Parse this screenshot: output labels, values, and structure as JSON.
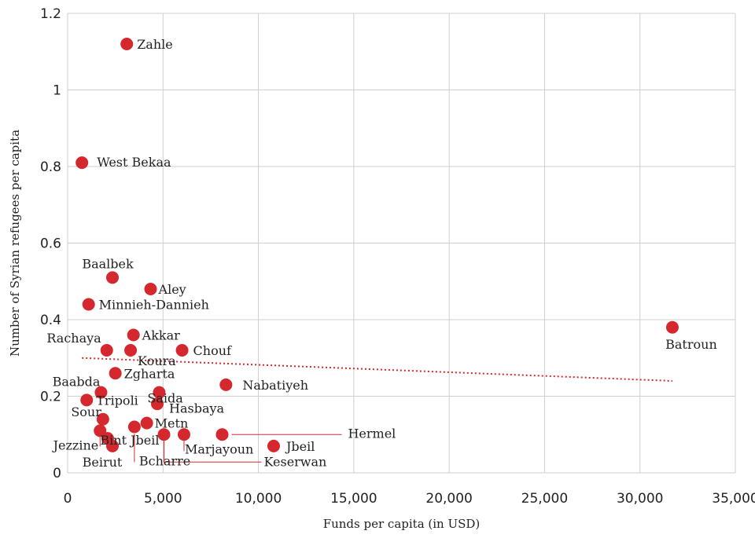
{
  "chart_data": {
    "type": "scatter",
    "xlabel": "Funds per capita (in USD)",
    "ylabel": "Number of Syrian refugees per capita",
    "xlim": [
      0,
      35000
    ],
    "ylim": [
      0,
      1.2
    ],
    "x_ticks": [
      0,
      5000,
      10000,
      15000,
      20000,
      25000,
      30000,
      35000
    ],
    "x_tick_labels": [
      "0",
      "5,000",
      "10,000",
      "15,000",
      "20,000",
      "25,000",
      "30,000",
      "35,000"
    ],
    "y_ticks": [
      0,
      0.2,
      0.4,
      0.6,
      0.8,
      1,
      1.2
    ],
    "y_tick_labels": [
      "0",
      "0.2",
      "0.4",
      "0.6",
      "0.8",
      "1",
      "1.2"
    ],
    "grid": true,
    "marker_color": "#d4282e",
    "trendline": {
      "style": "dotted",
      "color": "#d4282e",
      "x": [
        750,
        31700
      ],
      "y": [
        0.3,
        0.24
      ]
    },
    "points": [
      {
        "label": "Zahle",
        "x": 3100,
        "y": 1.12
      },
      {
        "label": "West Bekaa",
        "x": 750,
        "y": 0.81
      },
      {
        "label": "Baalbek",
        "x": 2350,
        "y": 0.51
      },
      {
        "label": "Aley",
        "x": 4350,
        "y": 0.48
      },
      {
        "label": "Minnieh-Dannieh",
        "x": 1100,
        "y": 0.44
      },
      {
        "label": "Batroun",
        "x": 31700,
        "y": 0.38
      },
      {
        "label": "Akkar",
        "x": 3450,
        "y": 0.36
      },
      {
        "label": "Rachaya",
        "x": 2050,
        "y": 0.32
      },
      {
        "label": "Koura",
        "x": 3300,
        "y": 0.32
      },
      {
        "label": "Chouf",
        "x": 6000,
        "y": 0.32
      },
      {
        "label": "Zgharta",
        "x": 2500,
        "y": 0.26
      },
      {
        "label": "Nabatiyeh",
        "x": 8300,
        "y": 0.23
      },
      {
        "label": "Baabda",
        "x": 1750,
        "y": 0.21
      },
      {
        "label": "Saida",
        "x": 4800,
        "y": 0.21
      },
      {
        "label": "Tripoli",
        "x": 1000,
        "y": 0.19
      },
      {
        "label": "Hasbaya",
        "x": 4700,
        "y": 0.18
      },
      {
        "label": "Sour",
        "x": 1850,
        "y": 0.14
      },
      {
        "label": "Metn",
        "x": 4150,
        "y": 0.13
      },
      {
        "label": "Jezzine",
        "x": 1700,
        "y": 0.11
      },
      {
        "label": "Bint Jbeil",
        "x": 2100,
        "y": 0.09
      },
      {
        "label": "Beirut",
        "x": 2350,
        "y": 0.07
      },
      {
        "label": "Bcharre",
        "x": 3500,
        "y": 0.12
      },
      {
        "label": "Keserwan",
        "x": 5050,
        "y": 0.1
      },
      {
        "label": "Marjayoun",
        "x": 6100,
        "y": 0.1
      },
      {
        "label": "Hermel",
        "x": 8100,
        "y": 0.1
      },
      {
        "label": "Jbeil",
        "x": 10800,
        "y": 0.07
      }
    ]
  }
}
